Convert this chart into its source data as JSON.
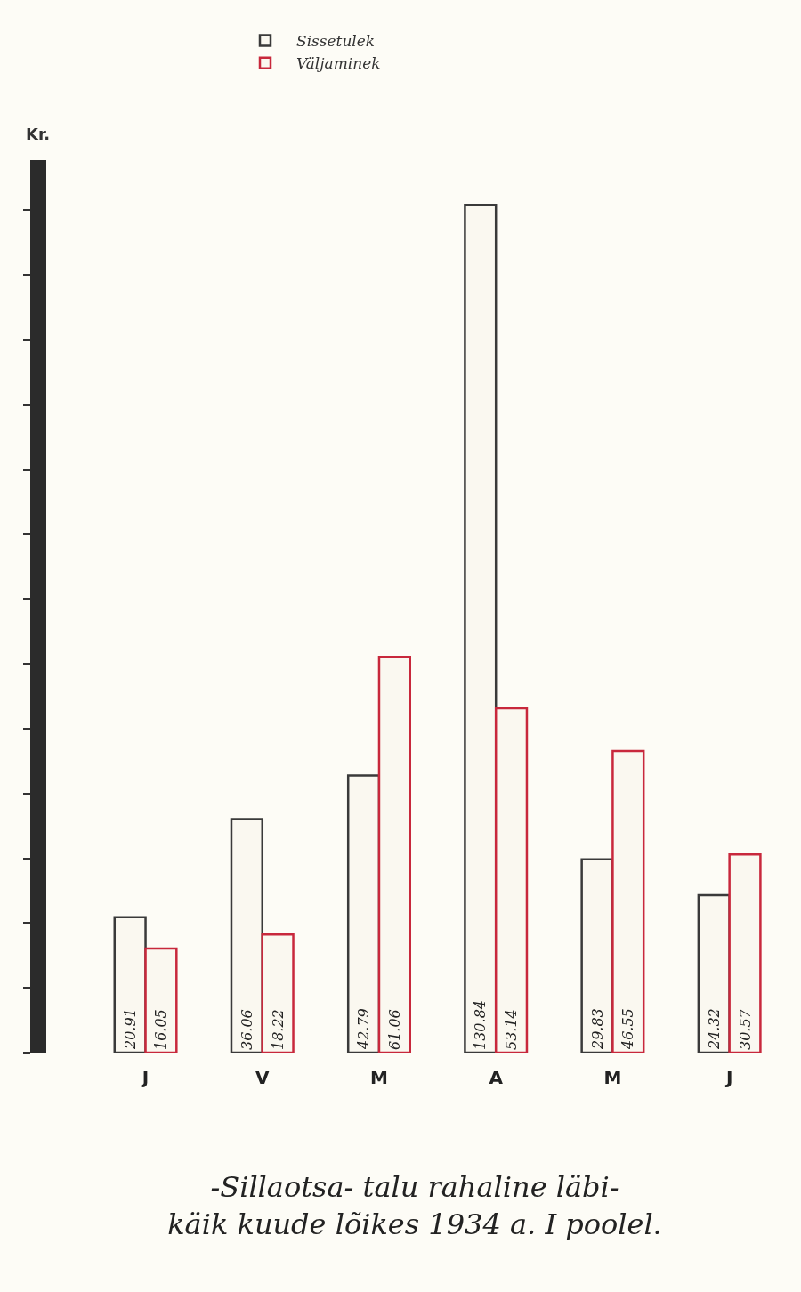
{
  "chart_data": {
    "type": "bar",
    "title": "-Sillaotsa- talu rahaline läbi-\nkäik kuude lõikes 1934 a. I poolel.",
    "ylabel": "Kr.",
    "categories": [
      "J",
      "V",
      "M",
      "A",
      "M",
      "J"
    ],
    "series": [
      {
        "name": "Sissetulek",
        "color": "#3a3a3a",
        "values": [
          20.91,
          36.06,
          42.79,
          130.84,
          29.83,
          24.32
        ]
      },
      {
        "name": "Väljaminek",
        "color": "#c8283c",
        "values": [
          16.05,
          18.22,
          61.06,
          53.14,
          46.55,
          30.57
        ]
      }
    ],
    "data_labels": true,
    "legend": "top",
    "tick_labels": "x"
  }
}
